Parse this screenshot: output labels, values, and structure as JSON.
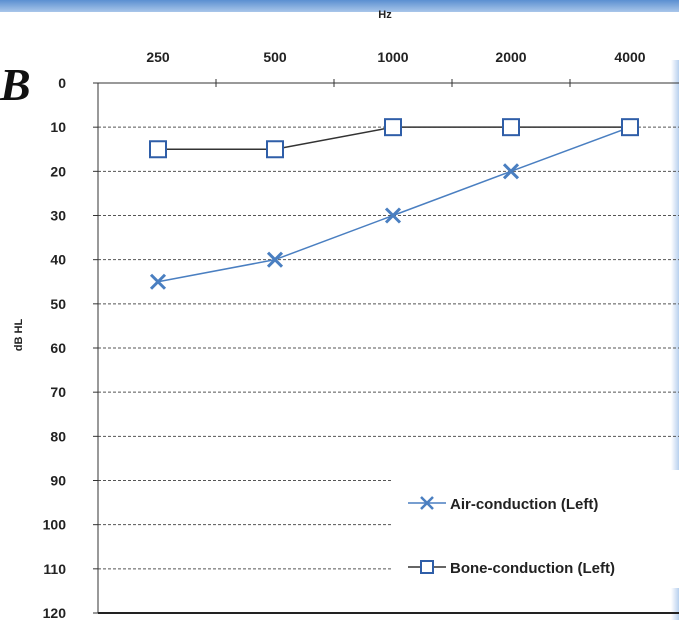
{
  "panel_label": "B",
  "chart_data": {
    "type": "line",
    "xlabel": "Hz",
    "ylabel": "dB HL",
    "categories": [
      "250",
      "500",
      "1000",
      "2000",
      "4000"
    ],
    "y_ticks": [
      "0",
      "10",
      "20",
      "30",
      "40",
      "50",
      "60",
      "70",
      "80",
      "90",
      "100",
      "110",
      "120"
    ],
    "ylim": [
      0,
      120
    ],
    "y_inverted": true,
    "x_axis_position": "top",
    "grid": "dashed horizontal",
    "legend_position": "bottom-right",
    "series": [
      {
        "name": "Air-conduction (Left)",
        "marker": "x",
        "color": "#4a7fc1",
        "values": [
          45,
          40,
          30,
          20,
          10
        ]
      },
      {
        "name": "Bone-conduction (Left)",
        "marker": "square",
        "color": "#333333",
        "marker_color": "#2f5ea8",
        "values": [
          15,
          15,
          10,
          10,
          10
        ]
      }
    ]
  }
}
